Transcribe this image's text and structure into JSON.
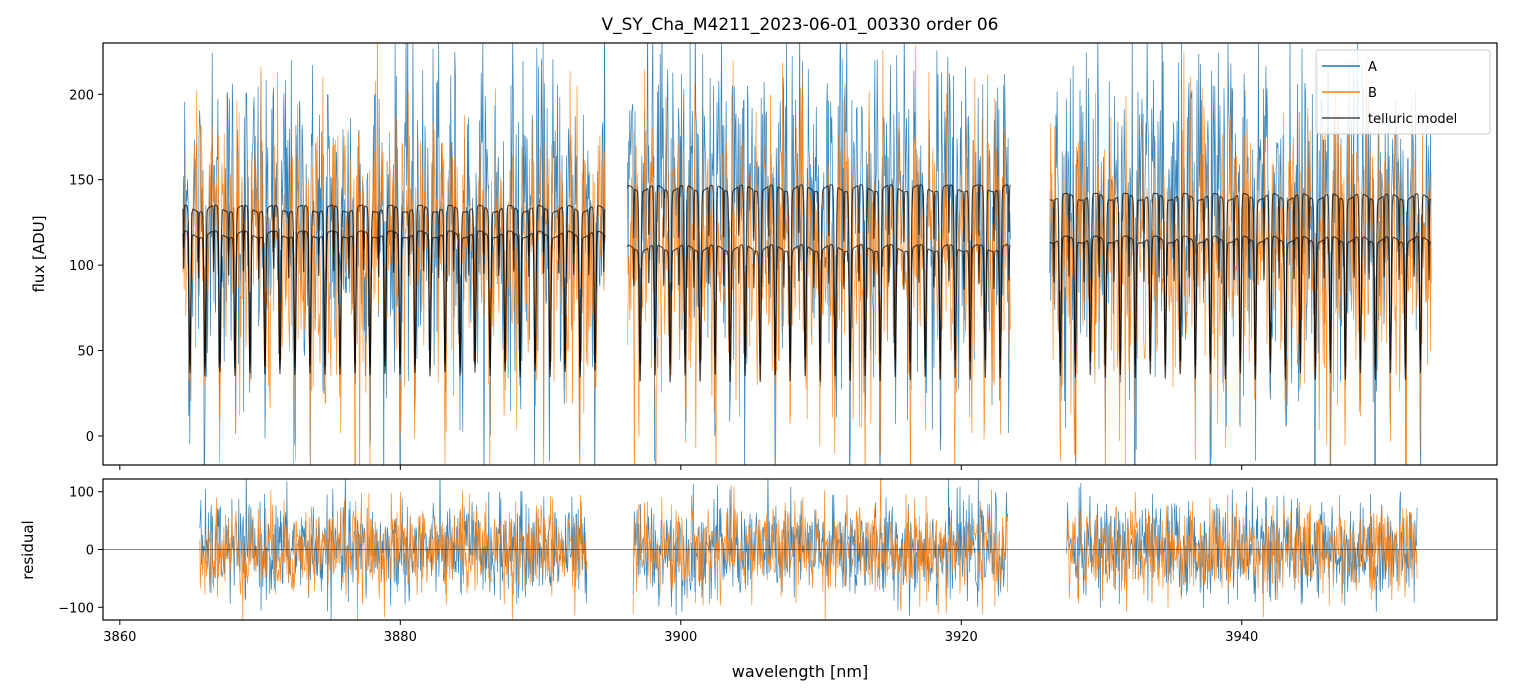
{
  "chart_data": [
    {
      "type": "line",
      "title": "V_SY_Cha_M4211_2023-06-01_00330  order 06",
      "xlabel": "",
      "ylabel": "flux [ADU]",
      "xlim": [
        3858.8,
        3958.2
      ],
      "ylim": [
        -17,
        230
      ],
      "x_ticks": [
        3860,
        3880,
        3900,
        3920,
        3940
      ],
      "y_ticks": [
        0,
        50,
        100,
        150,
        200
      ],
      "y_tick_labels": [
        "0",
        "50",
        "100",
        "150",
        "200"
      ],
      "x_tick_labels_shown": false,
      "legend": {
        "placement": "top-right",
        "entries": [
          "A",
          "B",
          "telluric model"
        ]
      },
      "grid": false,
      "segments": [
        {
          "x_range": [
            3864.5,
            3894.6
          ],
          "continuum_A": 133,
          "continuum_B": 118
        },
        {
          "x_range": [
            3896.2,
            3923.5
          ],
          "continuum_A": 145,
          "continuum_B": 110
        },
        {
          "x_range": [
            3926.3,
            3953.5
          ],
          "continuum_A": 140,
          "continuum_B": 115
        }
      ],
      "series": [
        {
          "name": "A",
          "color": "#1f77b4",
          "noise_sigma": 45
        },
        {
          "name": "B",
          "color": "#ff7f0e",
          "noise_sigma": 40
        },
        {
          "name": "telluric model",
          "color": "#000000",
          "line_spacing_nm": 1.07,
          "min_depth_flux": 15
        }
      ]
    },
    {
      "type": "line",
      "title": "",
      "xlabel": "wavelength [nm]",
      "ylabel": "residual",
      "xlim": [
        3858.8,
        3958.2
      ],
      "ylim": [
        -122,
        122
      ],
      "x_ticks": [
        3860,
        3880,
        3900,
        3920,
        3940
      ],
      "x_tick_labels": [
        "3860",
        "3880",
        "3900",
        "3920",
        "3940"
      ],
      "y_ticks": [
        -100,
        0,
        100
      ],
      "y_tick_labels": [
        "−100",
        "0",
        "100"
      ],
      "zero_line": true,
      "grid": false,
      "segments": [
        {
          "x_range": [
            3865.7,
            3893.3
          ]
        },
        {
          "x_range": [
            3896.6,
            3923.3
          ]
        },
        {
          "x_range": [
            3927.5,
            3952.5
          ]
        }
      ],
      "series": [
        {
          "name": "A",
          "color": "#1f77b4",
          "noise_sigma": 42
        },
        {
          "name": "B",
          "color": "#ff7f0e",
          "noise_sigma": 40
        }
      ]
    }
  ]
}
